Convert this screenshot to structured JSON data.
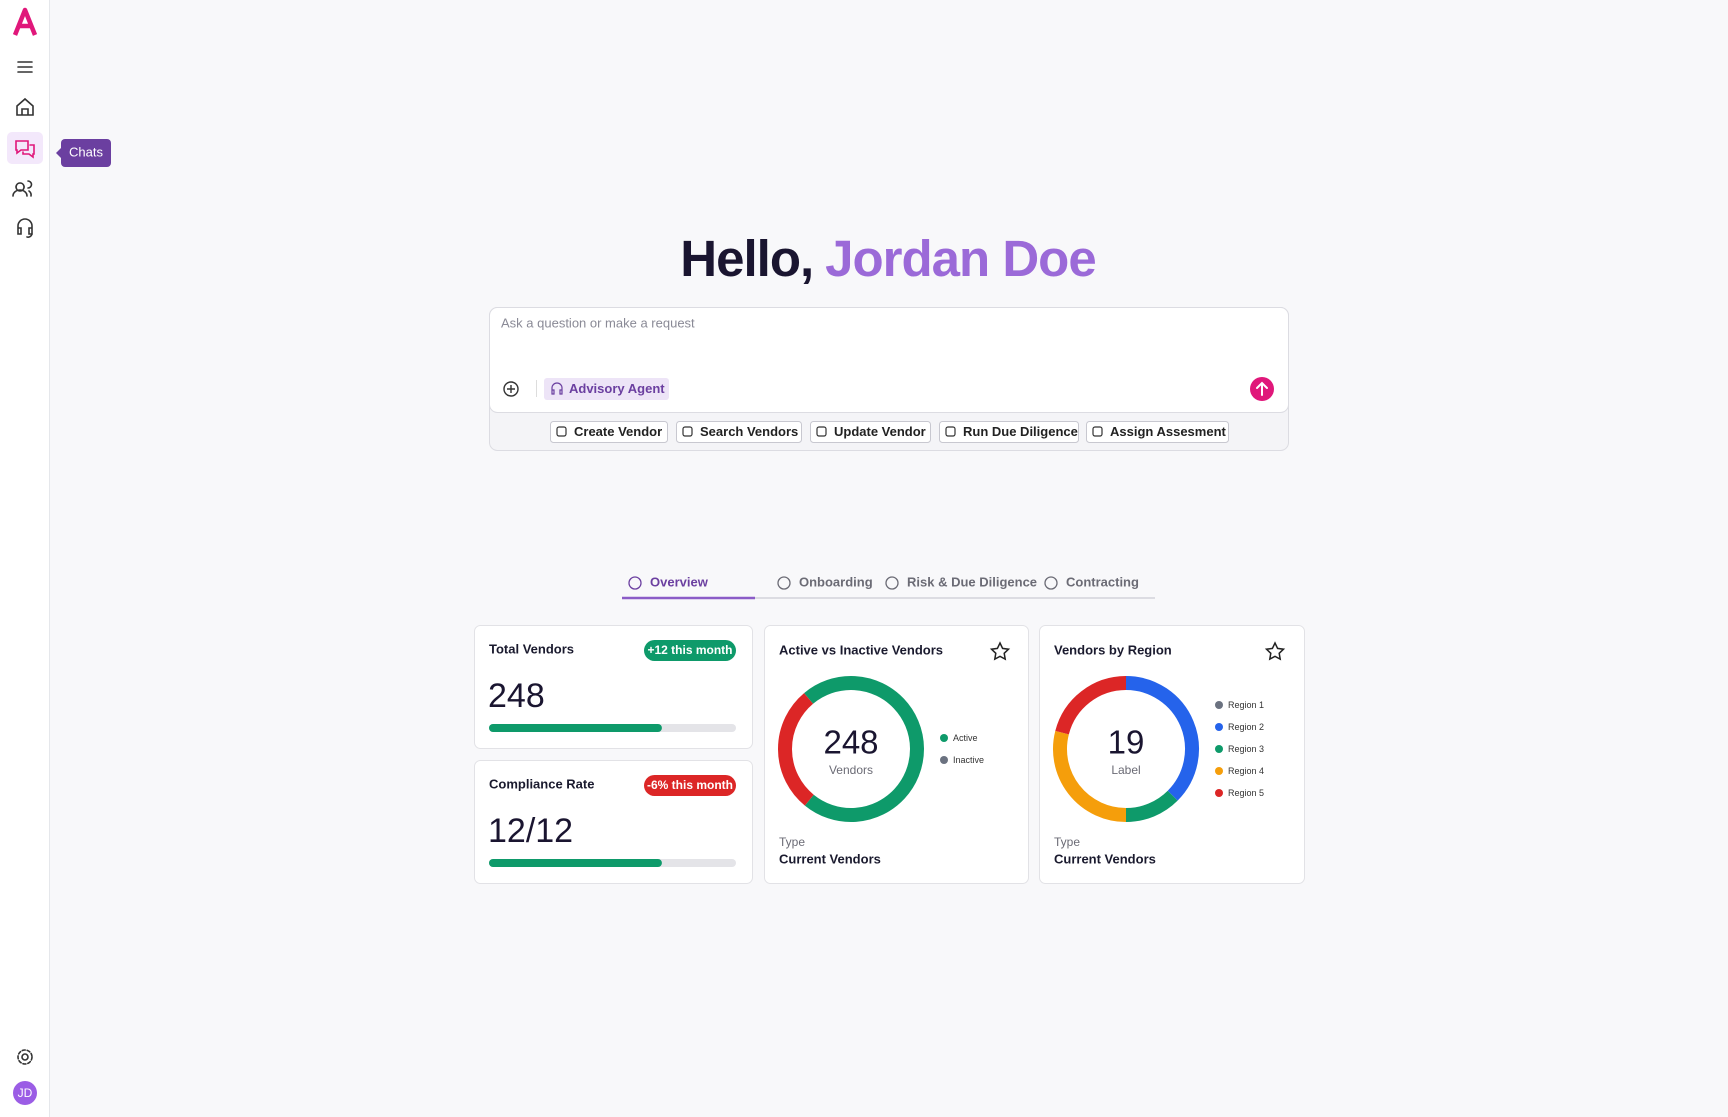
{
  "sidebar": {
    "tooltip": "Chats",
    "avatar": "JD"
  },
  "greeting": {
    "hello": "Hello,",
    "name": "Jordan Doe"
  },
  "prompt": {
    "placeholder": "Ask a question or make a request",
    "agent": "Advisory Agent",
    "actions": [
      "Create Vendor",
      "Search Vendors",
      "Update Vendor",
      "Run Due Diligence",
      "Assign Assesment"
    ]
  },
  "tabs": [
    "Overview",
    "Onboarding",
    "Risk & Due Diligence",
    "Contracting"
  ],
  "stats": [
    {
      "title": "Total Vendors",
      "badge": "+12 this month",
      "badge_color": "#0e9a6a",
      "value": "248",
      "progress": 70
    },
    {
      "title": "Compliance Rate",
      "badge": "-6% this month",
      "badge_color": "#dc2626",
      "value": "12/12",
      "progress": 70
    }
  ],
  "charts": [
    {
      "type": "donut",
      "title": "Active vs Inactive Vendors",
      "center_value": 248,
      "center_label": "Vendors",
      "footer_label": "Type",
      "footer_value": "Current Vendors",
      "segments": [
        {
          "name": "Active",
          "value": 72,
          "color": "#0e9a6a",
          "legend_color": "#0e9a6a"
        },
        {
          "name": "Inactive",
          "value": 28,
          "color": "#dc2626",
          "legend_color": "#6b7280"
        }
      ]
    },
    {
      "type": "donut",
      "title": "Vendors by Region",
      "center_value": 19,
      "center_label": "Label",
      "footer_label": "Type",
      "footer_value": "Current Vendors",
      "segments": [
        {
          "name": "Region 1",
          "value": 0,
          "color": "#6b7280",
          "legend_color": "#6b7280"
        },
        {
          "name": "Region 2",
          "value": 37.5,
          "color": "#2563eb",
          "legend_color": "#2563eb"
        },
        {
          "name": "Region 3",
          "value": 12.5,
          "color": "#0e9a6a",
          "legend_color": "#0e9a6a"
        },
        {
          "name": "Region 4",
          "value": 29,
          "color": "#f59e0b",
          "legend_color": "#f59e0b"
        },
        {
          "name": "Region 5",
          "value": 21,
          "color": "#dc2626",
          "legend_color": "#dc2626"
        }
      ]
    }
  ]
}
